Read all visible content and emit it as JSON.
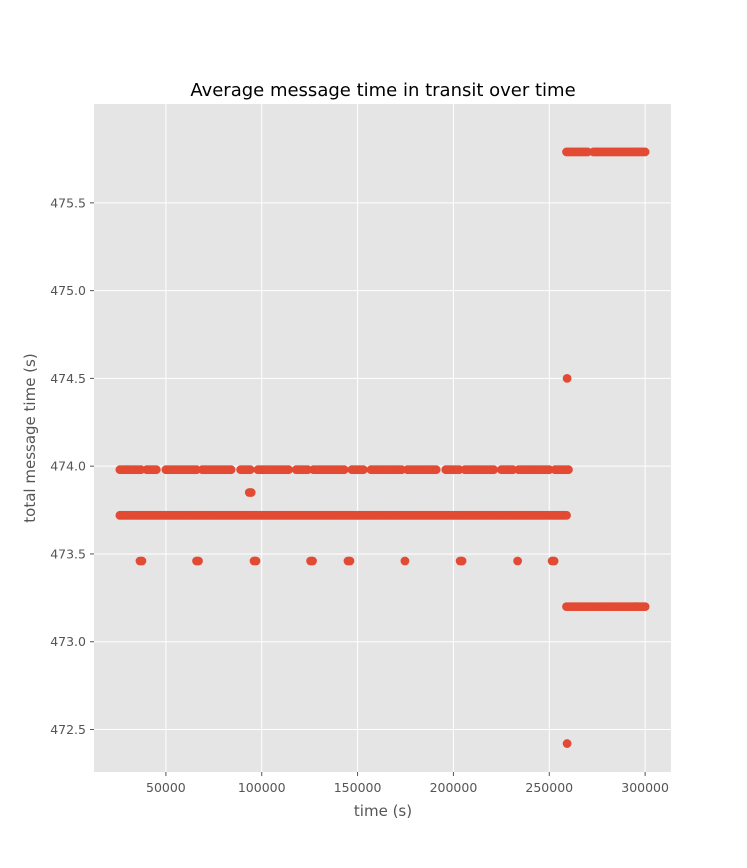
{
  "chart_data": {
    "type": "scatter",
    "title": "Average message time in transit over time",
    "xlabel": "time (s)",
    "ylabel": "total message time (s)",
    "xlim": [
      12500,
      313500
    ],
    "ylim": [
      472.258,
      476.063
    ],
    "xticks": [
      50000,
      100000,
      150000,
      200000,
      250000,
      300000
    ],
    "xtick_labels": [
      "50000",
      "100000",
      "150000",
      "200000",
      "250000",
      "300000"
    ],
    "yticks": [
      472.5,
      473.0,
      473.5,
      474.0,
      474.5,
      475.0,
      475.5
    ],
    "ytick_labels": [
      "472.5",
      "473.0",
      "473.5",
      "474.0",
      "474.5",
      "475.0",
      "475.5"
    ],
    "grid": true,
    "style": "ggplot",
    "marker_color": "#e24a33",
    "background": "#e5e5e5",
    "series": [
      {
        "name": "",
        "runs": [
          {
            "x_start": 26000,
            "x_end": 259500,
            "step": 1000,
            "y": 473.72
          },
          {
            "x_start": 26000,
            "x_end": 37000,
            "step": 1000,
            "y": 473.98
          },
          {
            "x_start": 40000,
            "x_end": 45000,
            "step": 1000,
            "y": 473.98
          },
          {
            "x_start": 50000,
            "x_end": 66000,
            "step": 1000,
            "y": 473.98
          },
          {
            "x_start": 69000,
            "x_end": 84000,
            "step": 1000,
            "y": 473.98
          },
          {
            "x_start": 89000,
            "x_end": 94000,
            "step": 1000,
            "y": 473.98
          },
          {
            "x_start": 98000,
            "x_end": 114000,
            "step": 1000,
            "y": 473.98
          },
          {
            "x_start": 118000,
            "x_end": 124000,
            "step": 1000,
            "y": 473.98
          },
          {
            "x_start": 127000,
            "x_end": 143000,
            "step": 1000,
            "y": 473.98
          },
          {
            "x_start": 147000,
            "x_end": 153000,
            "step": 1000,
            "y": 473.98
          },
          {
            "x_start": 157000,
            "x_end": 173000,
            "step": 1000,
            "y": 473.98
          },
          {
            "x_start": 176000,
            "x_end": 191000,
            "step": 1000,
            "y": 473.98
          },
          {
            "x_start": 196000,
            "x_end": 203000,
            "step": 1000,
            "y": 473.98
          },
          {
            "x_start": 206000,
            "x_end": 221000,
            "step": 1000,
            "y": 473.98
          },
          {
            "x_start": 225000,
            "x_end": 231000,
            "step": 1000,
            "y": 473.98
          },
          {
            "x_start": 234000,
            "x_end": 250000,
            "step": 1000,
            "y": 473.98
          },
          {
            "x_start": 253000,
            "x_end": 260000,
            "step": 1000,
            "y": 473.98
          },
          {
            "x_start": 259000,
            "x_end": 300500,
            "step": 1000,
            "y": 473.2
          },
          {
            "x_start": 259000,
            "x_end": 270000,
            "step": 1000,
            "y": 475.79
          },
          {
            "x_start": 273000,
            "x_end": 300500,
            "step": 1000,
            "y": 475.79
          }
        ],
        "points": [
          [
            36500,
            473.46
          ],
          [
            37500,
            473.46
          ],
          [
            66000,
            473.46
          ],
          [
            67000,
            473.46
          ],
          [
            96000,
            473.46
          ],
          [
            97000,
            473.46
          ],
          [
            125500,
            473.46
          ],
          [
            126500,
            473.46
          ],
          [
            145000,
            473.46
          ],
          [
            146000,
            473.46
          ],
          [
            174700,
            473.46
          ],
          [
            203500,
            473.46
          ],
          [
            204500,
            473.46
          ],
          [
            233500,
            473.46
          ],
          [
            251500,
            473.46
          ],
          [
            252500,
            473.46
          ],
          [
            93500,
            473.85
          ],
          [
            94500,
            473.85
          ],
          [
            259300,
            474.5
          ],
          [
            259300,
            472.42
          ]
        ]
      }
    ]
  }
}
